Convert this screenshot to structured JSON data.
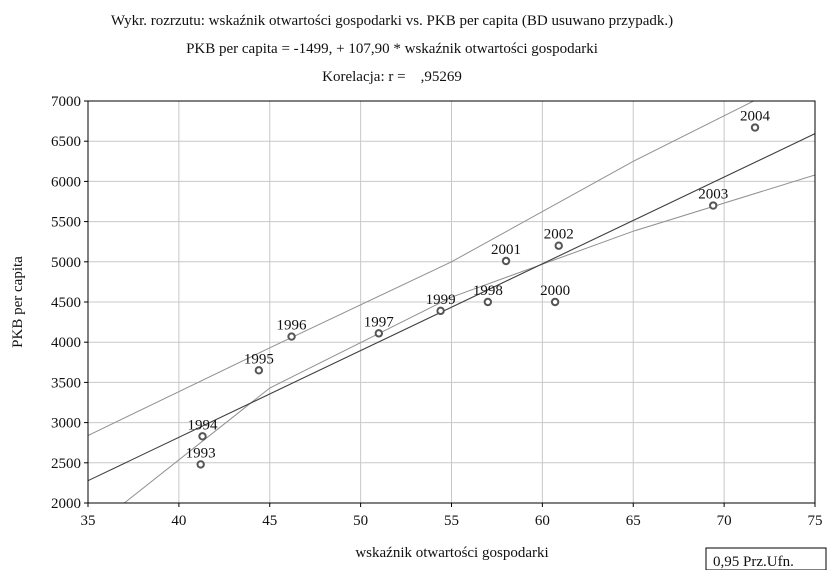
{
  "chart_data": {
    "type": "scatter",
    "title": "Wykr. rozrzutu: wskaźnik otwartości gospodarki vs. PKB per capita (BD usuwano przypadk.)",
    "subtitle": "PKB per capita = -1499, + 107,90 * wskaźnik otwartości gospodarki",
    "correlation": "Korelacja: r =    ,95269",
    "xlabel": "wskaźnik otwartości gospodarki",
    "ylabel": "PKB per capita",
    "xlim": [
      35,
      75
    ],
    "ylim": [
      2000,
      7000
    ],
    "xticks": [
      35,
      40,
      45,
      50,
      55,
      60,
      65,
      70,
      75
    ],
    "yticks": [
      2000,
      2500,
      3000,
      3500,
      4000,
      4500,
      5000,
      5500,
      6000,
      6500,
      7000
    ],
    "grid": true,
    "regression": {
      "intercept": -1499,
      "slope": 107.9
    },
    "confidence_band": {
      "upper": [
        [
          35,
          2840
        ],
        [
          45,
          3930
        ],
        [
          55,
          5000
        ],
        [
          65,
          6250
        ],
        [
          72.5,
          7100
        ]
      ],
      "lower": [
        [
          37,
          2000
        ],
        [
          45,
          3430
        ],
        [
          55,
          4560
        ],
        [
          65,
          5380
        ],
        [
          75,
          6080
        ]
      ]
    },
    "points": [
      {
        "label": "1993",
        "x": 41.2,
        "y": 2480
      },
      {
        "label": "1994",
        "x": 41.3,
        "y": 2830
      },
      {
        "label": "1995",
        "x": 44.4,
        "y": 3650
      },
      {
        "label": "1996",
        "x": 46.2,
        "y": 4070
      },
      {
        "label": "1997",
        "x": 51.0,
        "y": 4110
      },
      {
        "label": "1998",
        "x": 57.0,
        "y": 4500
      },
      {
        "label": "1999",
        "x": 54.4,
        "y": 4390
      },
      {
        "label": "2000",
        "x": 60.7,
        "y": 4500
      },
      {
        "label": "2001",
        "x": 58.0,
        "y": 5010
      },
      {
        "label": "2002",
        "x": 60.9,
        "y": 5200
      },
      {
        "label": "2003",
        "x": 69.4,
        "y": 5700
      },
      {
        "label": "2004",
        "x": 71.7,
        "y": 6670
      }
    ],
    "legend": {
      "label": "0,95 Prz.Ufn.",
      "position": "bottom-right"
    }
  }
}
